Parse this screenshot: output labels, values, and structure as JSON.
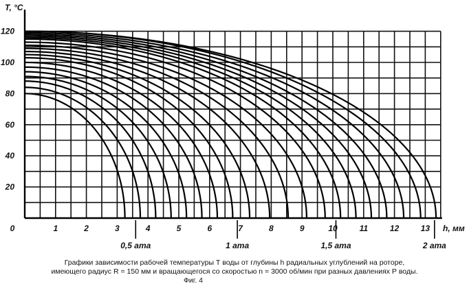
{
  "chart_data": {
    "type": "line",
    "ylabel": "T, °C",
    "xlabel": "h, мм",
    "xlim": [
      0,
      13.5
    ],
    "ylim": [
      0,
      120
    ],
    "x_ticks": [
      "0",
      "1",
      "2",
      "3",
      "4",
      "5",
      "6",
      "7",
      "8",
      "9",
      "10",
      "11",
      "12",
      "13"
    ],
    "y_ticks": [
      "20",
      "40",
      "60",
      "80",
      "100",
      "120"
    ],
    "grid": true,
    "pressure_markers": [
      {
        "label": "0,5 ата",
        "x": 3.6
      },
      {
        "label": "1 ата",
        "x": 6.9
      },
      {
        "label": "1,5 ата",
        "x": 10.1
      },
      {
        "label": "2 ата",
        "x": 13.3
      }
    ],
    "curves": [
      {
        "t0": 80,
        "h_end": 3.25
      },
      {
        "t0": 84,
        "h_end": 3.75
      },
      {
        "t0": 88,
        "h_end": 4.25
      },
      {
        "t0": 91,
        "h_end": 4.75
      },
      {
        "t0": 94,
        "h_end": 5.25
      },
      {
        "t0": 97,
        "h_end": 5.75
      },
      {
        "t0": 100,
        "h_end": 6.25
      },
      {
        "t0": 103,
        "h_end": 6.75
      },
      {
        "t0": 105,
        "h_end": 7.3
      },
      {
        "t0": 107,
        "h_end": 7.95
      },
      {
        "t0": 109,
        "h_end": 8.55
      },
      {
        "t0": 111,
        "h_end": 9.15
      },
      {
        "t0": 113,
        "h_end": 9.75
      },
      {
        "t0": 115,
        "h_end": 10.25
      },
      {
        "t0": 116,
        "h_end": 10.75
      },
      {
        "t0": 117,
        "h_end": 11.25
      },
      {
        "t0": 118,
        "h_end": 11.75
      },
      {
        "t0": 119,
        "h_end": 12.3
      },
      {
        "t0": 120,
        "h_end": 12.85
      },
      {
        "t0": 120,
        "h_end": 13.35
      }
    ]
  },
  "caption": {
    "line1": "Графики зависимости рабочей температуры Т воды от глубины h радиальных углублений на  роторе,",
    "line2": "имеющего радиус R = 150 мм и вращающегося со скоростью n = 3000 об/мин при разных давлениях Р воды.",
    "figure": "Фиг. 4"
  }
}
